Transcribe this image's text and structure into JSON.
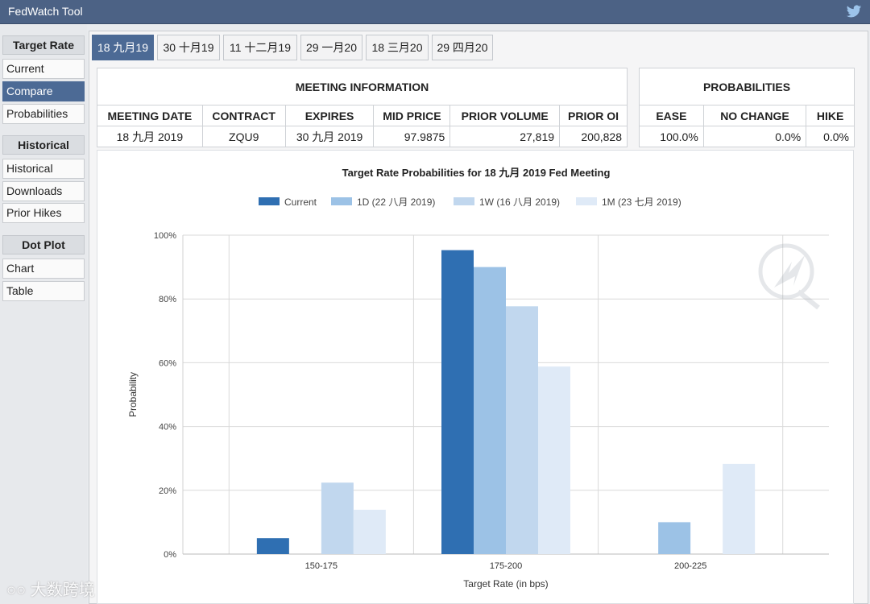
{
  "app": {
    "title": "FedWatch Tool",
    "twitter_icon": "twitter-bird-icon"
  },
  "sidebar": {
    "sections": [
      {
        "heading": "Target Rate",
        "items": [
          "Current",
          "Compare",
          "Probabilities"
        ]
      },
      {
        "heading": "Historical",
        "items": [
          "Historical",
          "Downloads",
          "Prior Hikes"
        ]
      },
      {
        "heading": "Dot Plot",
        "items": [
          "Chart",
          "Table"
        ]
      }
    ],
    "active_item": "Compare"
  },
  "tabs": [
    "18 九月19",
    "30 十月19",
    "11 十二月19",
    "29 一月20",
    "18 三月20",
    "29 四月20"
  ],
  "active_tab": 0,
  "meeting_info": {
    "heading": "MEETING INFORMATION",
    "columns": [
      "MEETING DATE",
      "CONTRACT",
      "EXPIRES",
      "MID PRICE",
      "PRIOR VOLUME",
      "PRIOR OI"
    ],
    "row": [
      "18 九月 2019",
      "ZQU9",
      "30 九月 2019",
      "97.9875",
      "27,819",
      "200,828"
    ]
  },
  "probabilities": {
    "heading": "PROBABILITIES",
    "columns": [
      "EASE",
      "NO CHANGE",
      "HIKE"
    ],
    "row": [
      "100.0%",
      "0.0%",
      "0.0%"
    ]
  },
  "chart_data": {
    "type": "bar",
    "title": "Target Rate Probabilities for 18 九月 2019 Fed Meeting",
    "xlabel": "Target Rate (in bps)",
    "ylabel": "Probability",
    "categories": [
      "150-175",
      "175-200",
      "200-225"
    ],
    "ylim": [
      0,
      100
    ],
    "yticks": [
      "0%",
      "20%",
      "40%",
      "60%",
      "80%",
      "100%"
    ],
    "legend_position": "top",
    "grid": true,
    "series": [
      {
        "name": "Current",
        "color": "#2f6fb2",
        "values": [
          5,
          95.3,
          0
        ]
      },
      {
        "name": "1D (22 八月 2019)",
        "color": "#9cc2e6",
        "values": [
          0,
          90,
          10
        ]
      },
      {
        "name": "1W (16 八月 2019)",
        "color": "#c1d7ee",
        "values": [
          22.4,
          77.7,
          0
        ]
      },
      {
        "name": "1M (23 七月 2019)",
        "color": "#dfeaf7",
        "values": [
          13.9,
          58.8,
          28.3
        ]
      }
    ]
  },
  "watermark": "大数跨境"
}
